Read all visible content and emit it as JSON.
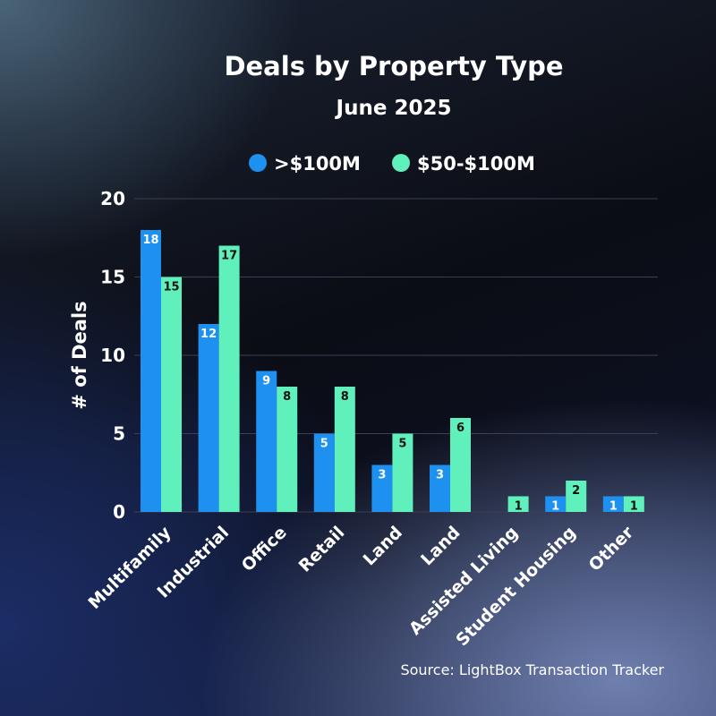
{
  "chart_data": {
    "type": "bar",
    "title": "Deals by Property Type",
    "subtitle": "June 2025",
    "ylabel": "# of Deals",
    "xlabel": "",
    "ylim": [
      0,
      20
    ],
    "yticks": [
      0,
      5,
      10,
      15,
      20
    ],
    "grid": true,
    "legend_position": "top",
    "categories": [
      "Multifamily",
      "Industrial",
      "Office",
      "Retail",
      "Land",
      "Land",
      "Assisted Living",
      "Student Housing",
      "Other"
    ],
    "series": [
      {
        "name": ">$100M",
        "color": "#1e90f0",
        "values": [
          18,
          12,
          9,
          5,
          3,
          3,
          null,
          1,
          1
        ]
      },
      {
        "name": "$50-$100M",
        "color": "#5ff0bc",
        "values": [
          15,
          17,
          8,
          8,
          5,
          6,
          1,
          2,
          1
        ]
      }
    ],
    "source": "Source: LightBox Transaction Tracker"
  }
}
